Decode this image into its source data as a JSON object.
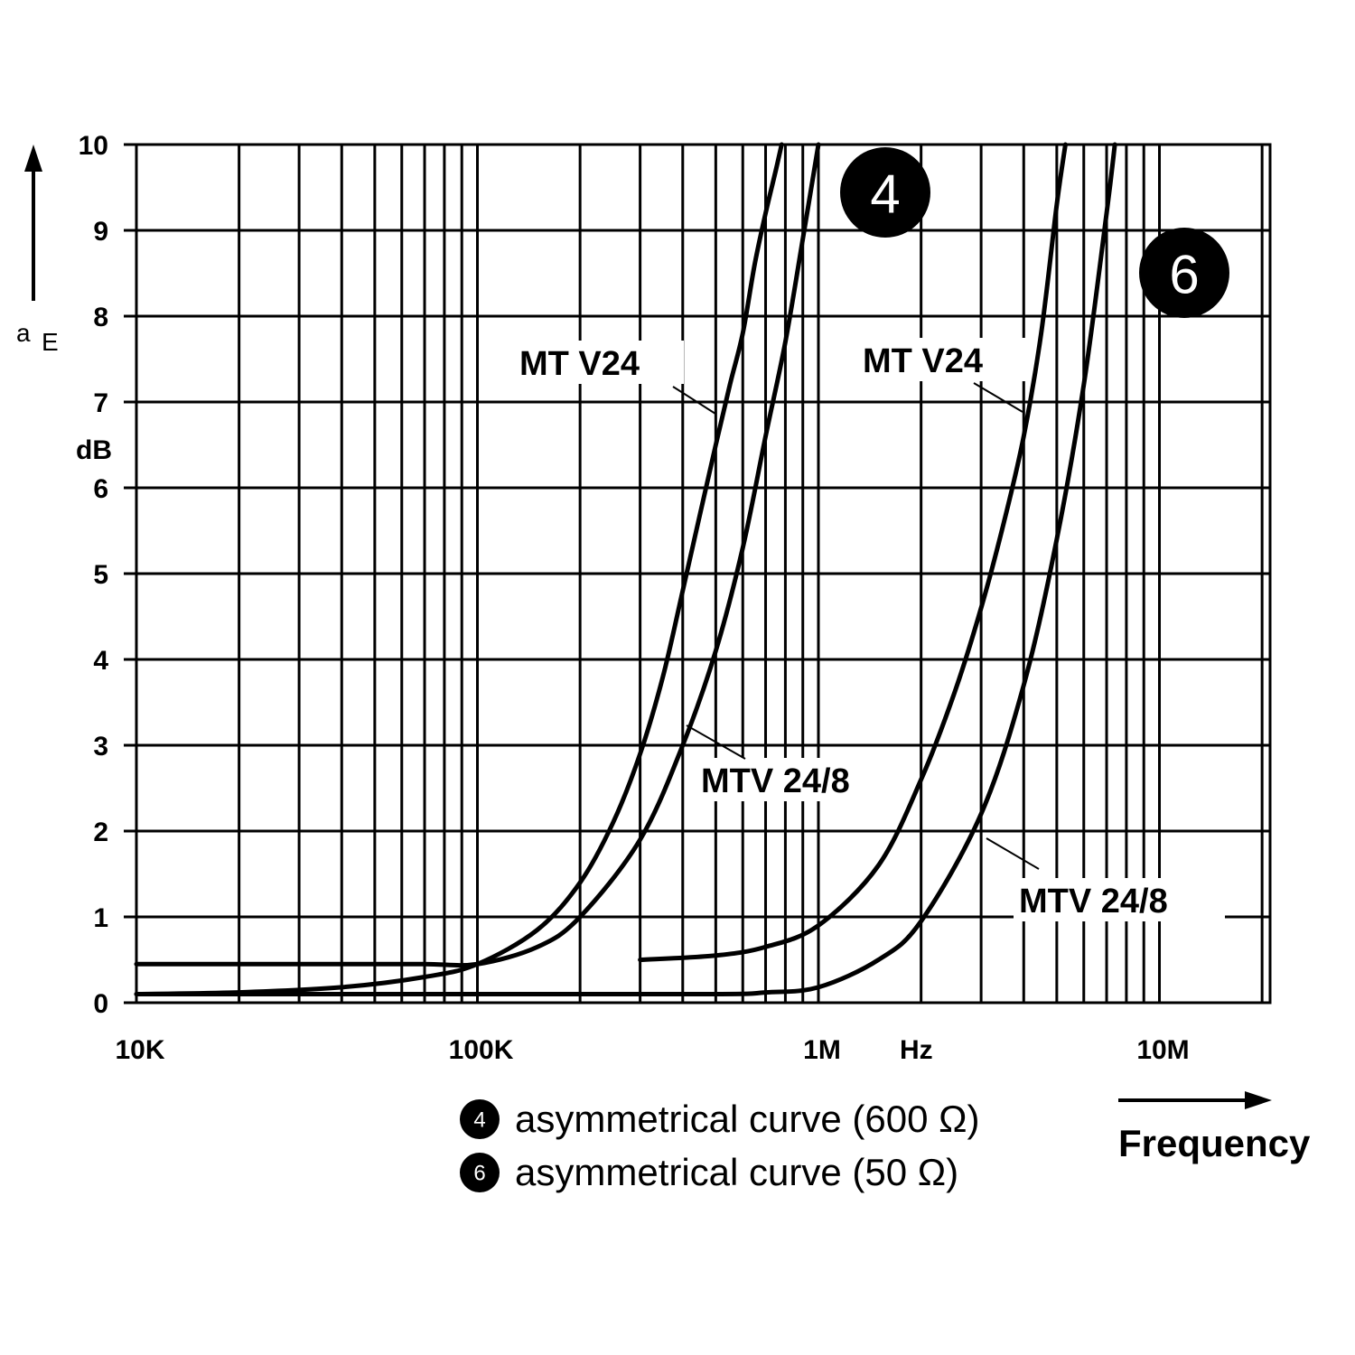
{
  "chart_data": {
    "type": "line",
    "title": "",
    "xlabel": "Hz",
    "x_arrow_label": "Frequency",
    "ylabel_symbol": "a",
    "ylabel_subscript": "E",
    "ylabel_unit": "dB",
    "x_scale": "log",
    "xlim": [
      10000,
      20000000
    ],
    "ylim": [
      0,
      10
    ],
    "x_tick_labels": [
      {
        "value": 10000,
        "label": "10K"
      },
      {
        "value": 100000,
        "label": "100K"
      },
      {
        "value": 1000000,
        "label": "1M"
      },
      {
        "value": 10000000,
        "label": "10M"
      }
    ],
    "y_ticks": [
      0,
      1,
      2,
      3,
      4,
      5,
      6,
      7,
      8,
      9,
      10
    ],
    "grid": true,
    "series": [
      {
        "name": "MT V24",
        "group": "4",
        "x": [
          10000,
          20000,
          40000,
          70000,
          100000,
          150000,
          200000,
          250000,
          300000,
          350000,
          400000,
          450000,
          500000,
          550000,
          600000,
          650000,
          700000,
          750000,
          780000
        ],
        "y": [
          0.1,
          0.12,
          0.18,
          0.3,
          0.45,
          0.85,
          1.4,
          2.1,
          2.9,
          3.8,
          4.8,
          5.7,
          6.5,
          7.2,
          7.8,
          8.6,
          9.2,
          9.7,
          10
        ]
      },
      {
        "name": "MTV 24/8",
        "group": "4",
        "x": [
          10000,
          20000,
          40000,
          70000,
          100000,
          150000,
          200000,
          300000,
          400000,
          500000,
          600000,
          700000,
          800000,
          900000,
          1000000
        ],
        "y": [
          0.45,
          0.45,
          0.45,
          0.45,
          0.45,
          0.65,
          1.0,
          1.9,
          3.0,
          4.1,
          5.3,
          6.6,
          7.7,
          8.9,
          10
        ]
      },
      {
        "name": "MT V24",
        "group": "6",
        "x": [
          300000,
          500000,
          700000,
          1000000,
          1500000,
          2000000,
          2500000,
          3000000,
          3500000,
          4000000,
          4500000,
          5000000,
          5300000
        ],
        "y": [
          0.5,
          0.55,
          0.65,
          0.9,
          1.6,
          2.6,
          3.6,
          4.6,
          5.6,
          6.6,
          7.8,
          9.3,
          10
        ]
      },
      {
        "name": "MTV 24/8",
        "group": "6",
        "x": [
          10000,
          100000,
          500000,
          700000,
          1000000,
          1500000,
          2000000,
          3000000,
          4000000,
          5000000,
          6000000,
          7000000,
          7400000
        ],
        "y": [
          0.1,
          0.1,
          0.1,
          0.12,
          0.18,
          0.5,
          0.95,
          2.2,
          3.7,
          5.4,
          7.2,
          9.2,
          10
        ]
      }
    ],
    "annotations": [
      {
        "text": "MT V24",
        "group": "4"
      },
      {
        "text": "MTV 24/8",
        "group": "4"
      },
      {
        "text": "MT V24",
        "group": "6"
      },
      {
        "text": "MTV 24/8",
        "group": "6"
      }
    ],
    "curve_badges": [
      "4",
      "6"
    ],
    "legend": [
      {
        "badge": "4",
        "text": "asymmetrical curve (600 Ω)"
      },
      {
        "badge": "6",
        "text": "asymmetrical curve (50 Ω)"
      }
    ]
  }
}
